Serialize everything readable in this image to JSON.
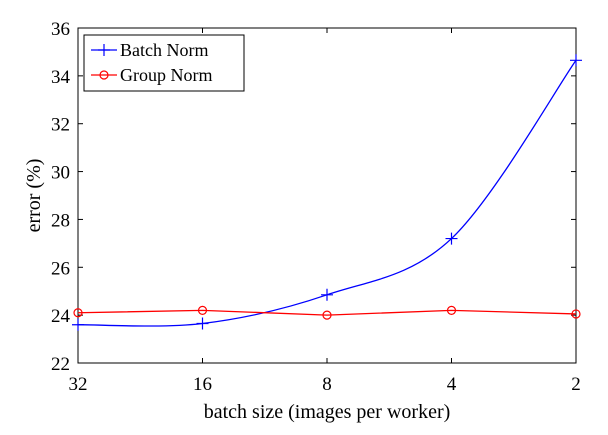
{
  "chart_data": {
    "type": "line",
    "categories": [
      "32",
      "16",
      "8",
      "4",
      "2"
    ],
    "xlabel": "batch size (images per worker)",
    "ylabel": "error (%)",
    "ylim": [
      22,
      36
    ],
    "yticks": [
      22,
      24,
      26,
      28,
      30,
      32,
      34,
      36
    ],
    "grid": false,
    "legend_position": "top-left",
    "series": [
      {
        "name": "Batch Norm",
        "color": "#0000ff",
        "marker": "plus",
        "values": [
          23.6,
          23.65,
          24.85,
          27.2,
          34.65
        ]
      },
      {
        "name": "Group Norm",
        "color": "#ff0000",
        "marker": "circle",
        "values": [
          24.1,
          24.2,
          24.0,
          24.2,
          24.05
        ]
      }
    ]
  }
}
